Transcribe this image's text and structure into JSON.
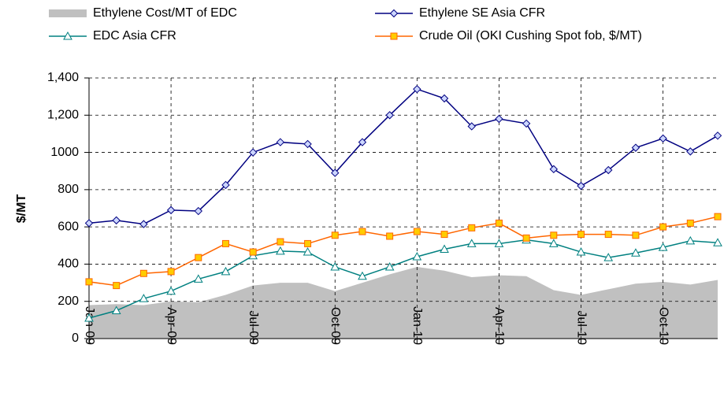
{
  "chart_data": {
    "type": "line",
    "y_label": "$/MT",
    "categories": [
      "Jan-09",
      null,
      null,
      "Apr-09",
      null,
      null,
      "Jul-09",
      null,
      null,
      "Oct-09",
      null,
      null,
      "Jan-10",
      null,
      null,
      "Apr-10",
      null,
      null,
      "Jul-10",
      null,
      null,
      "Oct-10",
      null,
      null
    ],
    "series": [
      {
        "name": "Ethylene Cost/MT of EDC",
        "type": "area",
        "color": "#c0c0c0",
        "values": [
          180,
          185,
          180,
          200,
          195,
          235,
          285,
          300,
          300,
          255,
          300,
          345,
          385,
          365,
          330,
          340,
          335,
          260,
          235,
          265,
          295,
          305,
          290,
          315
        ]
      },
      {
        "name": "Ethylene SE Asia CFR",
        "type": "line",
        "marker": "diamond",
        "color": "#000080",
        "values": [
          620,
          635,
          615,
          690,
          685,
          825,
          1000,
          1055,
          1045,
          890,
          1055,
          1200,
          1340,
          1290,
          1140,
          1180,
          1155,
          910,
          820,
          905,
          1025,
          1075,
          1005,
          1090
        ]
      },
      {
        "name": "EDC Asia CFR",
        "type": "line",
        "marker": "triangle",
        "color": "#008080",
        "values": [
          110,
          150,
          215,
          255,
          320,
          360,
          445,
          470,
          465,
          385,
          335,
          385,
          440,
          480,
          510,
          510,
          530,
          510,
          465,
          435,
          460,
          490,
          525,
          515
        ]
      },
      {
        "name": "Crude Oil (OKI Cushing Spot fob, $/MT)",
        "type": "line",
        "marker": "square",
        "color": "#ff6600",
        "marker_fill": "#ffcc00",
        "values": [
          305,
          285,
          350,
          360,
          435,
          510,
          465,
          520,
          510,
          555,
          575,
          550,
          575,
          560,
          595,
          620,
          540,
          555,
          560,
          560,
          555,
          600,
          620,
          655
        ]
      }
    ],
    "ylim": [
      0,
      1400
    ],
    "yticks": [
      0,
      200,
      400,
      600,
      800,
      1000,
      {
        "value": 1200,
        "label": "1,200"
      },
      {
        "value": 1400,
        "label": "1,400"
      }
    ],
    "grid": true
  }
}
